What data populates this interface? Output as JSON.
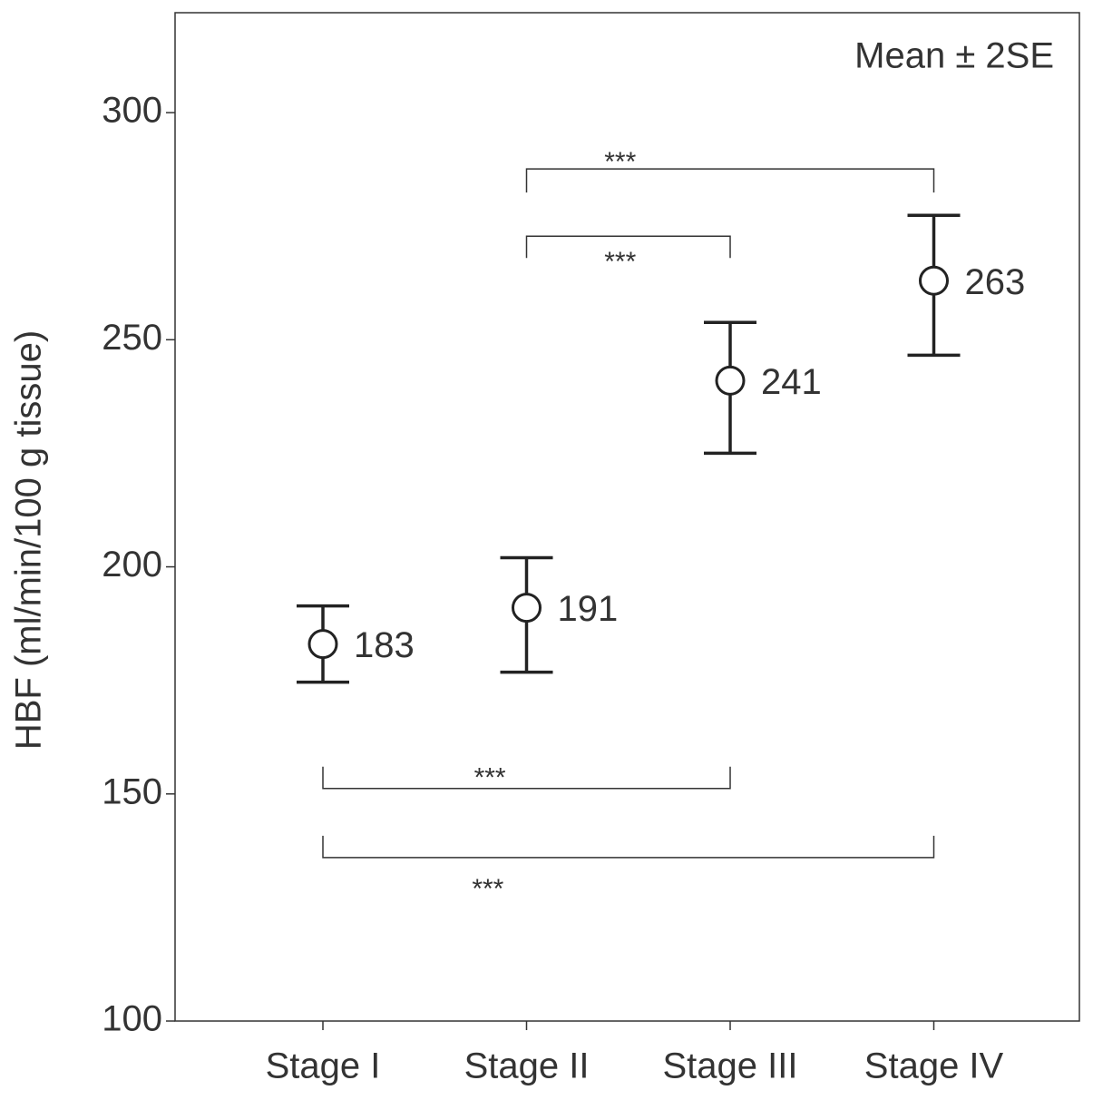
{
  "chart_data": {
    "type": "errorbar",
    "y_label": "HBF (ml/min/100 g tissue)",
    "annotation": "Mean ± 2SE",
    "categories": [
      "Stage I",
      "Stage II",
      "Stage III",
      "Stage IV"
    ],
    "values": [
      183,
      191,
      241,
      263
    ],
    "lower": [
      174.6,
      176.8,
      225,
      246.6
    ],
    "upper": [
      191.4,
      202,
      253.8,
      277.4
    ],
    "color": "#222222",
    "ylim": [
      100,
      322
    ],
    "yticks": [
      100,
      150,
      200,
      250,
      300
    ],
    "brackets": [
      {
        "label": "***",
        "between": [
          "Stage II",
          "Stage IV"
        ],
        "y": 287.6
      },
      {
        "label": "***",
        "between": [
          "Stage II",
          "Stage III"
        ],
        "y": 272.8
      },
      {
        "label": "***",
        "between": [
          "Stage I",
          "Stage III"
        ],
        "y": 151.2
      },
      {
        "label": "***",
        "between": [
          "Stage I",
          "Stage IV"
        ],
        "y": 136
      }
    ]
  }
}
